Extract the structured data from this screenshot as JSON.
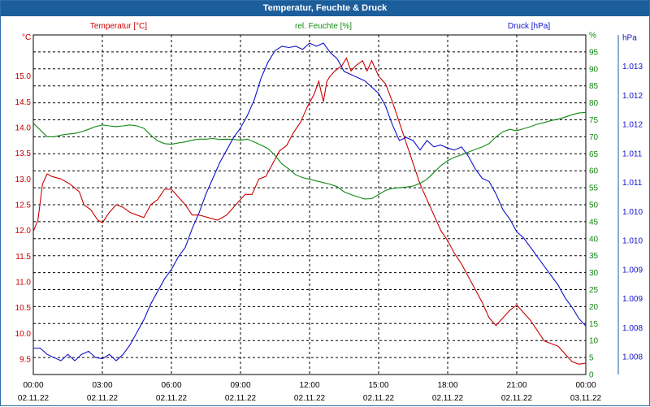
{
  "colors": {
    "temperature": "#cc0000",
    "humidity": "#118811",
    "pressure": "#1111cc",
    "title_bg": "#1c5e9c"
  },
  "chart_data": {
    "type": "line",
    "title": "Temperatur, Feuchte & Druck",
    "x_ticks": [
      {
        "time": "00:00",
        "date": "02.11.22"
      },
      {
        "time": "03:00",
        "date": "02.11.22"
      },
      {
        "time": "06:00",
        "date": "02.11.22"
      },
      {
        "time": "09:00",
        "date": "02.11.22"
      },
      {
        "time": "12:00",
        "date": "02.11.22"
      },
      {
        "time": "15:00",
        "date": "02.11.22"
      },
      {
        "time": "18:00",
        "date": "02.11.22"
      },
      {
        "time": "21:00",
        "date": "02.11.22"
      },
      {
        "time": "00:00",
        "date": "03.11.22"
      }
    ],
    "x_range_hours": [
      0,
      24
    ],
    "axes": {
      "temperature": {
        "unit": "°C",
        "ylim": [
          9.2,
          15.8
        ],
        "ticks": [
          "9.5",
          "10.0",
          "10.5",
          "11.0",
          "11.5",
          "12.0",
          "12.5",
          "13.0",
          "13.5",
          "14.0",
          "14.5",
          "15.0"
        ]
      },
      "humidity": {
        "unit": "%",
        "ylim": [
          0,
          100
        ],
        "ticks": [
          "0",
          "5",
          "10",
          "15",
          "20",
          "25",
          "30",
          "35",
          "40",
          "45",
          "50",
          "55",
          "60",
          "65",
          "70",
          "75",
          "80",
          "85",
          "90",
          "95",
          "%"
        ]
      },
      "pressure": {
        "unit": "hPa",
        "ylim": [
          1007.73,
          1013.13
        ],
        "ticks": [
          "1.008",
          "1.008",
          "1.009",
          "1.009",
          "1.010",
          "1.010",
          "1.011",
          "1.011",
          "1.012",
          "1.012",
          "1.013",
          "hPa"
        ]
      }
    },
    "series": [
      {
        "name": "Temperatur [°C]",
        "axis": "temperature",
        "points": [
          [
            0,
            11.98
          ],
          [
            0.2,
            12.2
          ],
          [
            0.4,
            12.9
          ],
          [
            0.6,
            13.1
          ],
          [
            0.8,
            13.05
          ],
          [
            1.2,
            13.0
          ],
          [
            1.6,
            12.9
          ],
          [
            2.0,
            12.75
          ],
          [
            2.2,
            12.5
          ],
          [
            2.5,
            12.4
          ],
          [
            2.8,
            12.2
          ],
          [
            3.0,
            12.15
          ],
          [
            3.3,
            12.35
          ],
          [
            3.6,
            12.5
          ],
          [
            3.9,
            12.45
          ],
          [
            4.2,
            12.35
          ],
          [
            4.5,
            12.3
          ],
          [
            4.8,
            12.25
          ],
          [
            5.1,
            12.5
          ],
          [
            5.4,
            12.6
          ],
          [
            5.7,
            12.8
          ],
          [
            6.0,
            12.8
          ],
          [
            6.3,
            12.65
          ],
          [
            6.6,
            12.5
          ],
          [
            6.9,
            12.3
          ],
          [
            7.2,
            12.3
          ],
          [
            7.6,
            12.25
          ],
          [
            8.0,
            12.2
          ],
          [
            8.4,
            12.3
          ],
          [
            8.8,
            12.5
          ],
          [
            9.2,
            12.7
          ],
          [
            9.5,
            12.7
          ],
          [
            9.8,
            13.0
          ],
          [
            10.1,
            13.05
          ],
          [
            10.4,
            13.3
          ],
          [
            10.7,
            13.55
          ],
          [
            11.0,
            13.65
          ],
          [
            11.3,
            13.9
          ],
          [
            11.6,
            14.1
          ],
          [
            11.9,
            14.4
          ],
          [
            12.2,
            14.65
          ],
          [
            12.4,
            14.9
          ],
          [
            12.6,
            14.5
          ],
          [
            12.75,
            14.9
          ],
          [
            12.9,
            15.0
          ],
          [
            13.1,
            15.1
          ],
          [
            13.4,
            15.2
          ],
          [
            13.6,
            15.35
          ],
          [
            13.8,
            15.1
          ],
          [
            14.0,
            15.2
          ],
          [
            14.3,
            15.3
          ],
          [
            14.5,
            15.1
          ],
          [
            14.7,
            15.3
          ],
          [
            15.0,
            15.0
          ],
          [
            15.3,
            14.85
          ],
          [
            15.6,
            14.5
          ],
          [
            15.9,
            14.1
          ],
          [
            16.2,
            13.7
          ],
          [
            16.5,
            13.3
          ],
          [
            16.8,
            12.9
          ],
          [
            17.1,
            12.6
          ],
          [
            17.4,
            12.3
          ],
          [
            17.7,
            12.0
          ],
          [
            18.0,
            11.8
          ],
          [
            18.3,
            11.55
          ],
          [
            18.6,
            11.35
          ],
          [
            18.9,
            11.1
          ],
          [
            19.2,
            10.85
          ],
          [
            19.5,
            10.6
          ],
          [
            19.8,
            10.3
          ],
          [
            20.1,
            10.15
          ],
          [
            20.4,
            10.3
          ],
          [
            20.7,
            10.45
          ],
          [
            21.0,
            10.55
          ],
          [
            21.3,
            10.4
          ],
          [
            21.6,
            10.25
          ],
          [
            21.9,
            10.05
          ],
          [
            22.2,
            9.85
          ],
          [
            22.5,
            9.8
          ],
          [
            22.8,
            9.75
          ],
          [
            23.1,
            9.6
          ],
          [
            23.4,
            9.45
          ],
          [
            23.7,
            9.4
          ],
          [
            24.0,
            9.42
          ]
        ]
      },
      {
        "name": "rel. Feuchte [%]",
        "axis": "humidity",
        "points": [
          [
            0,
            74
          ],
          [
            0.3,
            72
          ],
          [
            0.6,
            70
          ],
          [
            0.9,
            70
          ],
          [
            1.2,
            70.5
          ],
          [
            1.5,
            70.8
          ],
          [
            1.8,
            71
          ],
          [
            2.1,
            71.5
          ],
          [
            2.4,
            72.2
          ],
          [
            2.7,
            73
          ],
          [
            3.0,
            73.5
          ],
          [
            3.3,
            73.2
          ],
          [
            3.6,
            73
          ],
          [
            3.9,
            73.2
          ],
          [
            4.2,
            73.5
          ],
          [
            4.5,
            73.2
          ],
          [
            4.8,
            72.5
          ],
          [
            5.1,
            70.5
          ],
          [
            5.4,
            68.8
          ],
          [
            5.7,
            68
          ],
          [
            6.0,
            67.8
          ],
          [
            6.3,
            68.2
          ],
          [
            6.6,
            68.5
          ],
          [
            6.9,
            69
          ],
          [
            7.2,
            69.3
          ],
          [
            7.5,
            69.3
          ],
          [
            7.8,
            69.5
          ],
          [
            8.1,
            69.2
          ],
          [
            8.4,
            69.3
          ],
          [
            8.7,
            69.2
          ],
          [
            9.0,
            69
          ],
          [
            9.3,
            69.3
          ],
          [
            9.6,
            68.5
          ],
          [
            9.9,
            67.5
          ],
          [
            10.2,
            66.5
          ],
          [
            10.5,
            64.5
          ],
          [
            10.8,
            62
          ],
          [
            11.1,
            60.5
          ],
          [
            11.4,
            58.8
          ],
          [
            11.7,
            58
          ],
          [
            12.0,
            57.5
          ],
          [
            12.3,
            57
          ],
          [
            12.6,
            56.5
          ],
          [
            12.9,
            56
          ],
          [
            13.2,
            55.3
          ],
          [
            13.5,
            53.8
          ],
          [
            13.8,
            53
          ],
          [
            14.1,
            52.3
          ],
          [
            14.4,
            51.7
          ],
          [
            14.7,
            51.8
          ],
          [
            15.0,
            53
          ],
          [
            15.3,
            54.2
          ],
          [
            15.6,
            54.8
          ],
          [
            15.9,
            55
          ],
          [
            16.2,
            55.2
          ],
          [
            16.5,
            55.5
          ],
          [
            16.8,
            56.3
          ],
          [
            17.1,
            57.5
          ],
          [
            17.4,
            59.5
          ],
          [
            17.7,
            61.5
          ],
          [
            18.0,
            63
          ],
          [
            18.3,
            64
          ],
          [
            18.6,
            64.7
          ],
          [
            18.9,
            65.5
          ],
          [
            19.2,
            66.3
          ],
          [
            19.5,
            67
          ],
          [
            19.8,
            68
          ],
          [
            20.1,
            70
          ],
          [
            20.4,
            71.5
          ],
          [
            20.7,
            72.2
          ],
          [
            21.0,
            71.8
          ],
          [
            21.3,
            72.4
          ],
          [
            21.6,
            73
          ],
          [
            21.9,
            73.7
          ],
          [
            22.2,
            74.2
          ],
          [
            22.5,
            74.8
          ],
          [
            22.8,
            75.2
          ],
          [
            23.1,
            75.8
          ],
          [
            23.4,
            76.5
          ],
          [
            23.7,
            77
          ],
          [
            24.0,
            77.2
          ]
        ]
      },
      {
        "name": "Druck [hPa]",
        "axis": "pressure",
        "points": [
          [
            0,
            1008.15
          ],
          [
            0.3,
            1008.15
          ],
          [
            0.6,
            1008.05
          ],
          [
            0.9,
            1008.0
          ],
          [
            1.2,
            1007.95
          ],
          [
            1.5,
            1008.05
          ],
          [
            1.8,
            1007.95
          ],
          [
            2.1,
            1008.05
          ],
          [
            2.4,
            1008.1
          ],
          [
            2.7,
            1008.0
          ],
          [
            3.0,
            1007.98
          ],
          [
            3.3,
            1008.05
          ],
          [
            3.6,
            1007.95
          ],
          [
            3.9,
            1008.05
          ],
          [
            4.2,
            1008.2
          ],
          [
            4.5,
            1008.4
          ],
          [
            4.8,
            1008.6
          ],
          [
            5.1,
            1008.85
          ],
          [
            5.4,
            1009.05
          ],
          [
            5.7,
            1009.25
          ],
          [
            6.0,
            1009.4
          ],
          [
            6.3,
            1009.6
          ],
          [
            6.6,
            1009.75
          ],
          [
            6.9,
            1010.05
          ],
          [
            7.2,
            1010.3
          ],
          [
            7.5,
            1010.6
          ],
          [
            7.8,
            1010.85
          ],
          [
            8.1,
            1011.1
          ],
          [
            8.4,
            1011.3
          ],
          [
            8.7,
            1011.5
          ],
          [
            9.0,
            1011.65
          ],
          [
            9.3,
            1011.85
          ],
          [
            9.6,
            1012.1
          ],
          [
            9.9,
            1012.45
          ],
          [
            10.2,
            1012.7
          ],
          [
            10.5,
            1012.88
          ],
          [
            10.8,
            1012.95
          ],
          [
            11.1,
            1012.93
          ],
          [
            11.4,
            1012.95
          ],
          [
            11.7,
            1012.9
          ],
          [
            12.0,
            1013.0
          ],
          [
            12.3,
            1012.95
          ],
          [
            12.6,
            1013.0
          ],
          [
            12.9,
            1012.85
          ],
          [
            13.2,
            1012.75
          ],
          [
            13.5,
            1012.55
          ],
          [
            13.8,
            1012.5
          ],
          [
            14.1,
            1012.45
          ],
          [
            14.4,
            1012.4
          ],
          [
            14.7,
            1012.3
          ],
          [
            15.0,
            1012.2
          ],
          [
            15.3,
            1012.0
          ],
          [
            15.6,
            1011.7
          ],
          [
            15.9,
            1011.45
          ],
          [
            16.2,
            1011.5
          ],
          [
            16.5,
            1011.45
          ],
          [
            16.8,
            1011.3
          ],
          [
            17.1,
            1011.45
          ],
          [
            17.4,
            1011.35
          ],
          [
            17.7,
            1011.38
          ],
          [
            18.0,
            1011.33
          ],
          [
            18.3,
            1011.3
          ],
          [
            18.6,
            1011.35
          ],
          [
            18.9,
            1011.2
          ],
          [
            19.2,
            1011.0
          ],
          [
            19.5,
            1010.85
          ],
          [
            19.8,
            1010.8
          ],
          [
            20.1,
            1010.6
          ],
          [
            20.4,
            1010.35
          ],
          [
            20.7,
            1010.2
          ],
          [
            21.0,
            1010.0
          ],
          [
            21.3,
            1009.9
          ],
          [
            21.6,
            1009.75
          ],
          [
            21.9,
            1009.6
          ],
          [
            22.2,
            1009.45
          ],
          [
            22.5,
            1009.3
          ],
          [
            22.8,
            1009.15
          ],
          [
            23.1,
            1008.95
          ],
          [
            23.4,
            1008.8
          ],
          [
            23.7,
            1008.62
          ],
          [
            24.0,
            1008.5
          ]
        ]
      }
    ]
  }
}
